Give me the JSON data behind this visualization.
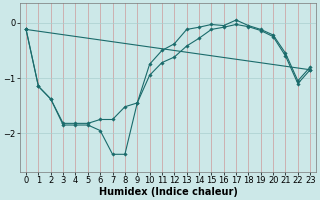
{
  "xlabel": "Humidex (Indice chaleur)",
  "bg_color": "#cce8e8",
  "grid_color": "#aacfcf",
  "line_color": "#1a6b6b",
  "xlim": [
    -0.5,
    23.5
  ],
  "ylim": [
    -2.7,
    0.35
  ],
  "yticks": [
    0,
    -1,
    -2
  ],
  "xticks": [
    0,
    1,
    2,
    3,
    4,
    5,
    6,
    7,
    8,
    9,
    10,
    11,
    12,
    13,
    14,
    15,
    16,
    17,
    18,
    19,
    20,
    21,
    22,
    23
  ],
  "line1_x": [
    0,
    1,
    2,
    3,
    4,
    5,
    6,
    7,
    8,
    9,
    10,
    11,
    12,
    13,
    14,
    15,
    16,
    17,
    18,
    19,
    20,
    21,
    22,
    23
  ],
  "line1_y": [
    -0.12,
    -1.15,
    -1.38,
    -1.85,
    -1.85,
    -1.85,
    -1.95,
    -2.38,
    -2.38,
    -1.45,
    -0.75,
    -0.5,
    -0.38,
    -0.12,
    -0.08,
    -0.03,
    -0.05,
    0.05,
    -0.05,
    -0.12,
    -0.22,
    -0.55,
    -1.05,
    -0.8
  ],
  "line2_x": [
    0,
    1,
    2,
    3,
    4,
    5,
    6,
    7,
    8,
    9,
    10,
    11,
    12,
    13,
    14,
    15,
    16,
    17,
    18,
    19,
    20,
    21,
    22,
    23
  ],
  "line2_y": [
    -0.12,
    -1.15,
    -1.38,
    -1.82,
    -1.82,
    -1.82,
    -1.75,
    -1.75,
    -1.52,
    -1.45,
    -0.95,
    -0.72,
    -0.62,
    -0.42,
    -0.28,
    -0.12,
    -0.08,
    -0.03,
    -0.07,
    -0.14,
    -0.25,
    -0.6,
    -1.1,
    -0.85
  ],
  "line3_x": [
    0,
    23
  ],
  "line3_y": [
    -0.12,
    -0.85
  ],
  "fontsize_xlabel": 7,
  "tick_fontsize": 6
}
